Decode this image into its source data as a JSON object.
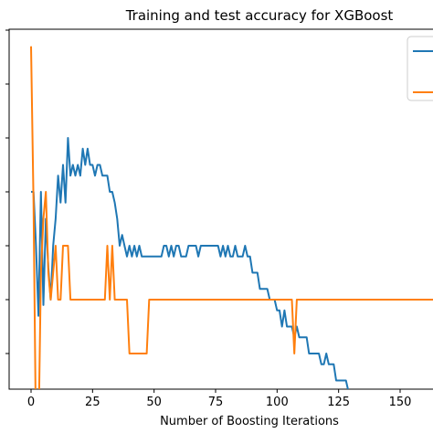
{
  "chart_data": {
    "type": "line",
    "title": "Training and test accuracy for XGBoost",
    "xlabel": "Number of Boosting Iterations",
    "ylabel": "",
    "xlim": [
      -5,
      165
    ],
    "ylim": [
      0,
      11
    ],
    "x_ticks": [
      0,
      25,
      50,
      75,
      100,
      125,
      150
    ],
    "y_ticks": [
      1,
      2,
      3,
      4,
      5,
      6,
      7
    ],
    "grid": false,
    "legend": {
      "placement": "top-right",
      "entries": [
        {
          "color": "#1f77b4"
        },
        {
          "color": "#ff7f0e"
        }
      ]
    },
    "series": [
      {
        "color": "#1f77b4",
        "points": [
          [
            0,
            4.0
          ],
          [
            1,
            4.0
          ],
          [
            2,
            3.0
          ],
          [
            3,
            1.7
          ],
          [
            4,
            4.0
          ],
          [
            5,
            1.9
          ],
          [
            6,
            3.5
          ],
          [
            7,
            2.6
          ],
          [
            8,
            2.0
          ],
          [
            9,
            3.0
          ],
          [
            10,
            3.5
          ],
          [
            11,
            4.3
          ],
          [
            12,
            3.8
          ],
          [
            13,
            4.5
          ],
          [
            14,
            3.8
          ],
          [
            15,
            5.0
          ],
          [
            16,
            4.3
          ],
          [
            17,
            4.5
          ],
          [
            18,
            4.3
          ],
          [
            19,
            4.5
          ],
          [
            20,
            4.3
          ],
          [
            21,
            4.8
          ],
          [
            22,
            4.5
          ],
          [
            23,
            4.8
          ],
          [
            24,
            4.5
          ],
          [
            25,
            4.5
          ],
          [
            26,
            4.3
          ],
          [
            27,
            4.5
          ],
          [
            28,
            4.5
          ],
          [
            29,
            4.3
          ],
          [
            30,
            4.3
          ],
          [
            31,
            4.3
          ],
          [
            32,
            4.0
          ],
          [
            33,
            4.0
          ],
          [
            34,
            3.8
          ],
          [
            35,
            3.5
          ],
          [
            36,
            3.0
          ],
          [
            37,
            3.2
          ],
          [
            38,
            3.0
          ],
          [
            39,
            2.8
          ],
          [
            40,
            3.0
          ],
          [
            41,
            2.8
          ],
          [
            42,
            3.0
          ],
          [
            43,
            2.8
          ],
          [
            44,
            3.0
          ],
          [
            45,
            2.8
          ],
          [
            46,
            2.8
          ],
          [
            47,
            2.8
          ],
          [
            48,
            2.8
          ],
          [
            49,
            2.8
          ],
          [
            50,
            2.8
          ],
          [
            51,
            2.8
          ],
          [
            52,
            2.8
          ],
          [
            53,
            2.8
          ],
          [
            54,
            3.0
          ],
          [
            55,
            3.0
          ],
          [
            56,
            2.8
          ],
          [
            57,
            3.0
          ],
          [
            58,
            2.8
          ],
          [
            59,
            3.0
          ],
          [
            60,
            3.0
          ],
          [
            61,
            2.8
          ],
          [
            62,
            2.8
          ],
          [
            63,
            2.8
          ],
          [
            64,
            3.0
          ],
          [
            65,
            3.0
          ],
          [
            66,
            3.0
          ],
          [
            67,
            3.0
          ],
          [
            68,
            2.8
          ],
          [
            69,
            3.0
          ],
          [
            70,
            3.0
          ],
          [
            71,
            3.0
          ],
          [
            72,
            3.0
          ],
          [
            73,
            3.0
          ],
          [
            74,
            3.0
          ],
          [
            75,
            3.0
          ],
          [
            76,
            3.0
          ],
          [
            77,
            2.8
          ],
          [
            78,
            3.0
          ],
          [
            79,
            2.8
          ],
          [
            80,
            3.0
          ],
          [
            81,
            2.8
          ],
          [
            82,
            2.8
          ],
          [
            83,
            3.0
          ],
          [
            84,
            2.8
          ],
          [
            85,
            2.8
          ],
          [
            86,
            2.8
          ],
          [
            87,
            3.0
          ],
          [
            88,
            2.8
          ],
          [
            89,
            2.8
          ],
          [
            90,
            2.5
          ],
          [
            91,
            2.5
          ],
          [
            92,
            2.5
          ],
          [
            93,
            2.2
          ],
          [
            94,
            2.2
          ],
          [
            95,
            2.2
          ],
          [
            96,
            2.2
          ],
          [
            97,
            2.0
          ],
          [
            98,
            2.0
          ],
          [
            99,
            2.0
          ],
          [
            100,
            1.8
          ],
          [
            101,
            1.8
          ],
          [
            102,
            1.5
          ],
          [
            103,
            1.8
          ],
          [
            104,
            1.5
          ],
          [
            105,
            1.5
          ],
          [
            106,
            1.5
          ],
          [
            107,
            1.3
          ],
          [
            108,
            1.5
          ],
          [
            109,
            1.3
          ],
          [
            110,
            1.3
          ],
          [
            111,
            1.3
          ],
          [
            112,
            1.3
          ],
          [
            113,
            1.0
          ],
          [
            114,
            1.0
          ],
          [
            115,
            1.0
          ],
          [
            116,
            1.0
          ],
          [
            117,
            1.0
          ],
          [
            118,
            0.8
          ],
          [
            119,
            0.8
          ],
          [
            120,
            1.0
          ],
          [
            121,
            0.8
          ],
          [
            122,
            0.8
          ],
          [
            123,
            0.8
          ],
          [
            124,
            0.5
          ],
          [
            125,
            0.5
          ],
          [
            126,
            0.5
          ],
          [
            127,
            0.5
          ],
          [
            128,
            0.5
          ],
          [
            129,
            0.3
          ],
          [
            130,
            0.3
          ],
          [
            131,
            0.3
          ],
          [
            132,
            0.3
          ],
          [
            133,
            0.3
          ],
          [
            134,
            0.0
          ],
          [
            135,
            0.3
          ],
          [
            136,
            0.0
          ],
          [
            137,
            0.0
          ],
          [
            138,
            0.3
          ],
          [
            139,
            0.0
          ],
          [
            140,
            0.3
          ],
          [
            141,
            0.3
          ],
          [
            142,
            0.3
          ],
          [
            143,
            0.3
          ],
          [
            144,
            0.0
          ],
          [
            145,
            0.0
          ],
          [
            146,
            -0.3
          ],
          [
            147,
            -0.3
          ],
          [
            148,
            -0.3
          ],
          [
            149,
            -0.3
          ],
          [
            150,
            -0.3
          ],
          [
            151,
            -0.3
          ],
          [
            152,
            -0.3
          ],
          [
            153,
            -0.3
          ],
          [
            154,
            -0.3
          ],
          [
            155,
            -0.3
          ],
          [
            156,
            -0.3
          ],
          [
            157,
            -0.3
          ],
          [
            158,
            -0.3
          ],
          [
            159,
            -0.3
          ],
          [
            160,
            -0.3
          ],
          [
            161,
            -0.3
          ],
          [
            162,
            -0.3
          ],
          [
            163,
            -0.3
          ],
          [
            164,
            -0.3
          ],
          [
            165,
            -0.3
          ]
        ]
      },
      {
        "color": "#ff7f0e",
        "points": [
          [
            0,
            6.7
          ],
          [
            1,
            3.8
          ],
          [
            2,
            -0.6
          ],
          [
            3,
            -0.6
          ],
          [
            4,
            2.5
          ],
          [
            5,
            3.5
          ],
          [
            6,
            4.0
          ],
          [
            7,
            2.5
          ],
          [
            8,
            2.0
          ],
          [
            9,
            2.5
          ],
          [
            10,
            3.0
          ],
          [
            11,
            2.0
          ],
          [
            12,
            2.0
          ],
          [
            13,
            3.0
          ],
          [
            14,
            3.0
          ],
          [
            15,
            3.0
          ],
          [
            16,
            2.0
          ],
          [
            17,
            2.0
          ],
          [
            18,
            2.0
          ],
          [
            19,
            2.0
          ],
          [
            20,
            2.0
          ],
          [
            21,
            2.0
          ],
          [
            22,
            2.0
          ],
          [
            23,
            2.0
          ],
          [
            24,
            2.0
          ],
          [
            25,
            2.0
          ],
          [
            26,
            2.0
          ],
          [
            27,
            2.0
          ],
          [
            28,
            2.0
          ],
          [
            29,
            2.0
          ],
          [
            30,
            2.0
          ],
          [
            31,
            3.0
          ],
          [
            32,
            2.0
          ],
          [
            33,
            3.0
          ],
          [
            34,
            2.0
          ],
          [
            35,
            2.0
          ],
          [
            36,
            2.0
          ],
          [
            37,
            2.0
          ],
          [
            38,
            2.0
          ],
          [
            39,
            2.0
          ],
          [
            40,
            1.0
          ],
          [
            41,
            1.0
          ],
          [
            42,
            1.0
          ],
          [
            43,
            1.0
          ],
          [
            44,
            1.0
          ],
          [
            45,
            1.0
          ],
          [
            46,
            1.0
          ],
          [
            47,
            1.0
          ],
          [
            48,
            2.0
          ],
          [
            49,
            2.0
          ],
          [
            50,
            2.0
          ],
          [
            55,
            2.0
          ],
          [
            60,
            2.0
          ],
          [
            65,
            2.0
          ],
          [
            70,
            2.0
          ],
          [
            75,
            2.0
          ],
          [
            80,
            2.0
          ],
          [
            85,
            2.0
          ],
          [
            90,
            2.0
          ],
          [
            95,
            2.0
          ],
          [
            100,
            2.0
          ],
          [
            105,
            2.0
          ],
          [
            106,
            2.0
          ],
          [
            107,
            1.0
          ],
          [
            108,
            2.0
          ],
          [
            109,
            2.0
          ],
          [
            110,
            2.0
          ],
          [
            115,
            2.0
          ],
          [
            120,
            2.0
          ],
          [
            125,
            2.0
          ],
          [
            130,
            2.0
          ],
          [
            135,
            2.0
          ],
          [
            140,
            2.0
          ],
          [
            145,
            2.0
          ],
          [
            150,
            2.0
          ],
          [
            155,
            2.0
          ],
          [
            160,
            2.0
          ],
          [
            165,
            2.0
          ]
        ]
      }
    ]
  }
}
